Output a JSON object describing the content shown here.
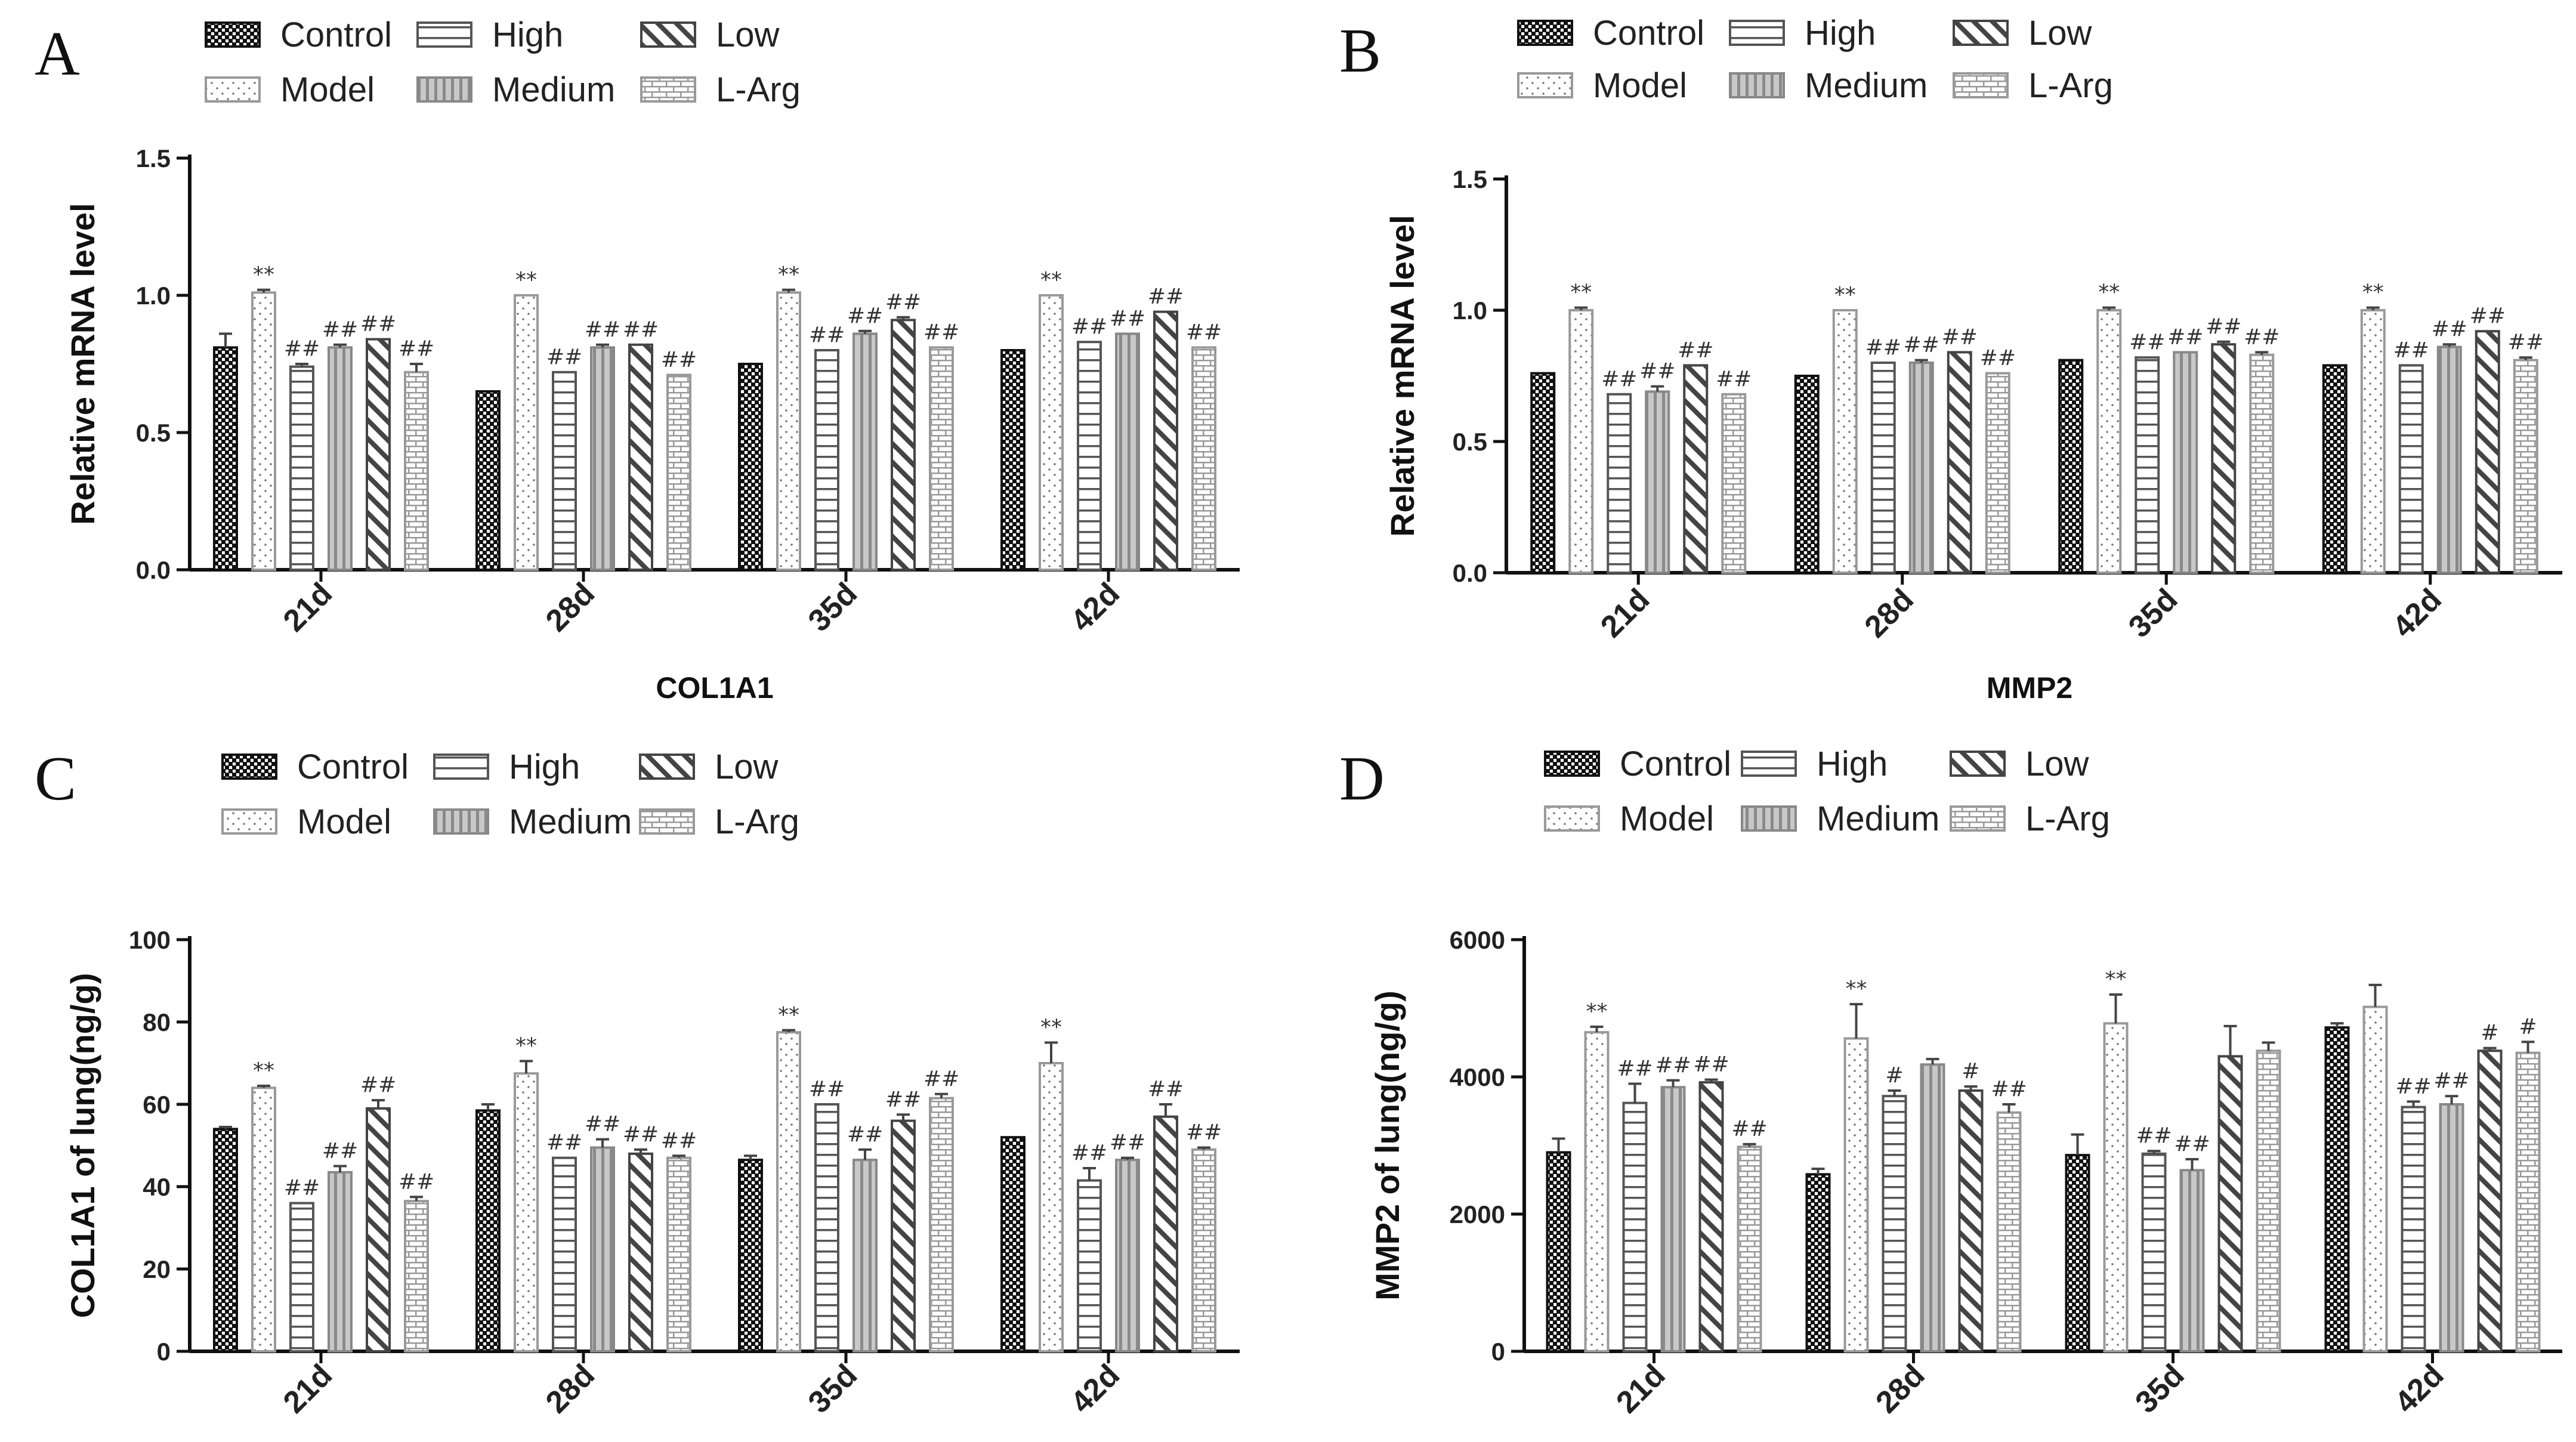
{
  "legend": {
    "groups": [
      "Control",
      "Model",
      "High",
      "Medium",
      "Low",
      "L-Arg"
    ]
  },
  "colors": {
    "control": "#222222",
    "model": "#9a9a9a",
    "high": "#555555",
    "medium": "#8a8a8a",
    "low": "#444444",
    "larg": "#9a9a9a",
    "axis": "#111111"
  },
  "chart_data": [
    {
      "panel": "A",
      "type": "bar",
      "title": "COL1A1",
      "ylabel": "Relative mRNA level",
      "xlabel": "",
      "ylim": [
        0,
        1.5
      ],
      "yticks": [
        "0.0",
        "0.5",
        "1.0",
        "1.5"
      ],
      "tick_values": [
        0,
        0.5,
        1.0,
        1.5
      ],
      "categories": [
        "21d",
        "28d",
        "35d",
        "42d"
      ],
      "series": [
        {
          "name": "Control",
          "values": [
            0.81,
            0.65,
            0.75,
            0.8
          ],
          "errors": [
            0.05,
            0,
            0,
            0
          ]
        },
        {
          "name": "Model",
          "values": [
            1.01,
            1.0,
            1.01,
            1.0
          ],
          "errors": [
            0.01,
            0,
            0.01,
            0
          ],
          "labels": [
            "**",
            "**",
            "**",
            "**"
          ]
        },
        {
          "name": "High",
          "values": [
            0.74,
            0.72,
            0.8,
            0.83
          ],
          "errors": [
            0.01,
            0,
            0,
            0
          ],
          "labels": [
            "##",
            "##",
            "##",
            "##"
          ]
        },
        {
          "name": "Medium",
          "values": [
            0.81,
            0.81,
            0.86,
            0.86
          ],
          "errors": [
            0.01,
            0.01,
            0.01,
            0
          ],
          "labels": [
            "##",
            "##",
            "##",
            "##"
          ]
        },
        {
          "name": "Low",
          "values": [
            0.84,
            0.82,
            0.91,
            0.94
          ],
          "errors": [
            0,
            0,
            0.01,
            0
          ],
          "labels": [
            "##",
            "##",
            "##",
            "##"
          ]
        },
        {
          "name": "L-Arg",
          "values": [
            0.72,
            0.71,
            0.81,
            0.81
          ],
          "errors": [
            0.03,
            0,
            0,
            0
          ],
          "labels": [
            "##",
            "##",
            "##",
            "##"
          ]
        }
      ]
    },
    {
      "panel": "B",
      "type": "bar",
      "title": "MMP2",
      "ylabel": "Relative mRNA level",
      "xlabel": "",
      "ylim": [
        0,
        1.5
      ],
      "yticks": [
        "0.0",
        "0.5",
        "1.0",
        "1.5"
      ],
      "tick_values": [
        0,
        0.5,
        1.0,
        1.5
      ],
      "categories": [
        "21d",
        "28d",
        "35d",
        "42d"
      ],
      "series": [
        {
          "name": "Control",
          "values": [
            0.76,
            0.75,
            0.81,
            0.79
          ],
          "errors": [
            0,
            0,
            0,
            0
          ]
        },
        {
          "name": "Model",
          "values": [
            1.0,
            1.0,
            1.0,
            1.0
          ],
          "errors": [
            0.01,
            0,
            0.01,
            0.01
          ],
          "labels": [
            "**",
            "**",
            "**",
            "**"
          ]
        },
        {
          "name": "High",
          "values": [
            0.68,
            0.8,
            0.82,
            0.79
          ],
          "errors": [
            0,
            0,
            0,
            0
          ],
          "labels": [
            "##",
            "##",
            "##",
            "##"
          ]
        },
        {
          "name": "Medium",
          "values": [
            0.69,
            0.8,
            0.84,
            0.86
          ],
          "errors": [
            0.02,
            0.01,
            0,
            0.01
          ],
          "labels": [
            "##",
            "##",
            "##",
            "##"
          ]
        },
        {
          "name": "Low",
          "values": [
            0.79,
            0.84,
            0.87,
            0.92
          ],
          "errors": [
            0,
            0,
            0.01,
            0
          ],
          "labels": [
            "##",
            "##",
            "##",
            "##"
          ]
        },
        {
          "name": "L-Arg",
          "values": [
            0.68,
            0.76,
            0.83,
            0.81
          ],
          "errors": [
            0,
            0,
            0.01,
            0.01
          ],
          "labels": [
            "##",
            "##",
            "##",
            "##"
          ]
        }
      ]
    },
    {
      "panel": "C",
      "type": "bar",
      "title": "",
      "ylabel": "COL1A1 of lung(ng/g)",
      "xlabel": "",
      "ylim": [
        0,
        100
      ],
      "yticks": [
        "0",
        "20",
        "40",
        "60",
        "80",
        "100"
      ],
      "tick_values": [
        0,
        20,
        40,
        60,
        80,
        100
      ],
      "categories": [
        "21d",
        "28d",
        "35d",
        "42d"
      ],
      "series": [
        {
          "name": "Control",
          "values": [
            54,
            58.5,
            46.5,
            52
          ],
          "errors": [
            0.5,
            1.5,
            1,
            0
          ]
        },
        {
          "name": "Model",
          "values": [
            64,
            67.5,
            77.5,
            70
          ],
          "errors": [
            0.5,
            3,
            0.5,
            5
          ],
          "labels": [
            "**",
            "**",
            "**",
            "**"
          ]
        },
        {
          "name": "High",
          "values": [
            36,
            47,
            60,
            41.5
          ],
          "errors": [
            0,
            0,
            0,
            3
          ],
          "labels": [
            "##",
            "##",
            "##",
            "##"
          ]
        },
        {
          "name": "Medium",
          "values": [
            43.5,
            49.5,
            46.5,
            46.5
          ],
          "errors": [
            1.5,
            2,
            2.5,
            0.5
          ],
          "labels": [
            "##",
            "##",
            "##",
            "##"
          ]
        },
        {
          "name": "Low",
          "values": [
            59,
            48,
            56,
            57
          ],
          "errors": [
            2,
            1,
            1.5,
            3
          ],
          "labels": [
            "##",
            "##",
            "##",
            "##"
          ]
        },
        {
          "name": "L-Arg",
          "values": [
            36.5,
            47,
            61.5,
            49
          ],
          "errors": [
            1,
            0.5,
            1,
            0.5
          ],
          "labels": [
            "##",
            "##",
            "##",
            "##"
          ]
        }
      ]
    },
    {
      "panel": "D",
      "type": "bar",
      "title": "",
      "ylabel": "MMP2 of lung(ng/g)",
      "xlabel": "",
      "ylim": [
        0,
        6000
      ],
      "yticks": [
        "0",
        "2000",
        "4000",
        "6000"
      ],
      "tick_values": [
        0,
        2000,
        4000,
        6000
      ],
      "categories": [
        "21d",
        "28d",
        "35d",
        "42d"
      ],
      "series": [
        {
          "name": "Control",
          "values": [
            2900,
            2580,
            2860,
            4720
          ],
          "errors": [
            200,
            80,
            300,
            60
          ]
        },
        {
          "name": "Model",
          "values": [
            4650,
            4560,
            4780,
            5020
          ],
          "errors": [
            80,
            500,
            420,
            320
          ],
          "labels": [
            "**",
            "**",
            "**",
            ""
          ]
        },
        {
          "name": "High",
          "values": [
            3620,
            3720,
            2880,
            3560
          ],
          "errors": [
            280,
            80,
            40,
            80
          ],
          "labels": [
            "##",
            "#",
            "##",
            "##"
          ]
        },
        {
          "name": "Medium",
          "values": [
            3850,
            4180,
            2640,
            3600
          ],
          "errors": [
            100,
            80,
            160,
            120
          ],
          "labels": [
            "##",
            "",
            "##",
            "##"
          ]
        },
        {
          "name": "Low",
          "values": [
            3920,
            3800,
            4300,
            4380
          ],
          "errors": [
            40,
            60,
            440,
            40
          ],
          "labels": [
            "##",
            "#",
            "",
            "#"
          ]
        },
        {
          "name": "L-Arg",
          "values": [
            2980,
            3480,
            4380,
            4350
          ],
          "errors": [
            40,
            120,
            120,
            160
          ],
          "labels": [
            "##",
            "##",
            "",
            "#"
          ]
        }
      ]
    }
  ]
}
